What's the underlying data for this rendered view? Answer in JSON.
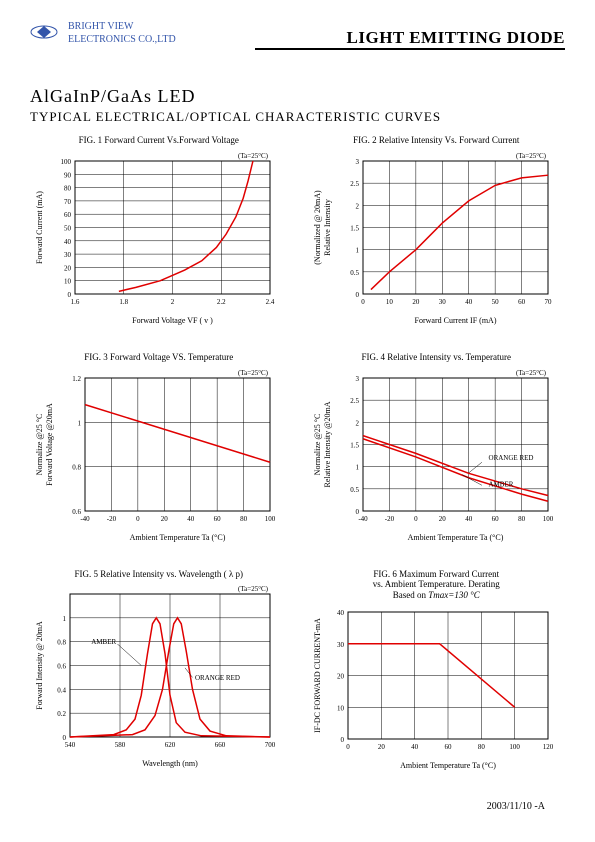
{
  "company": {
    "line1": "BRIGHT VIEW",
    "line2": "ELECTRONICS CO.,LTD"
  },
  "main_title": "LIGHT EMITTING DIODE",
  "subtitle1": "AlGaInP/GaAs LED",
  "subtitle2": "TYPICAL ELECTRICAL/OPTICAL CHARACTERISTIC CURVES",
  "footer_date": "2003/11/10 -A",
  "temp_label": "(Ta=25°C)",
  "fig1": {
    "title": "FIG. 1 Forward Current Vs.Forward Voltage",
    "xlabel": "Forward Voltage VF ( v )",
    "ylabel": "Forward Current (mA)",
    "xlim": [
      1.6,
      2.4
    ],
    "xticks": [
      1.6,
      1.8,
      2.0,
      2.2,
      2.4
    ],
    "ylim": [
      0,
      100
    ],
    "yticks": [
      0,
      10,
      20,
      30,
      40,
      50,
      60,
      70,
      80,
      90,
      100
    ],
    "curve": [
      [
        1.78,
        2
      ],
      [
        1.85,
        5
      ],
      [
        1.95,
        10
      ],
      [
        2.05,
        18
      ],
      [
        2.12,
        25
      ],
      [
        2.18,
        35
      ],
      [
        2.22,
        45
      ],
      [
        2.26,
        58
      ],
      [
        2.29,
        72
      ],
      [
        2.31,
        85
      ],
      [
        2.33,
        100
      ]
    ],
    "curve_color": "#e00000",
    "bg": "#ffffff",
    "grid_color": "#000000"
  },
  "fig2": {
    "title": "FIG. 2 Relative Intensity Vs. Forward Current",
    "xlabel": "Forward Current IF (mA)",
    "ylabel": "Relative Intensity\n(Normalized @ 20mA)",
    "xlim": [
      0,
      70
    ],
    "xticks": [
      0,
      10,
      20,
      30,
      40,
      50,
      60,
      70
    ],
    "ylim": [
      0,
      3.0
    ],
    "yticks": [
      0,
      0.5,
      1.0,
      1.5,
      2.0,
      2.5,
      3.0
    ],
    "curve": [
      [
        3,
        0.1
      ],
      [
        10,
        0.5
      ],
      [
        20,
        1.0
      ],
      [
        30,
        1.6
      ],
      [
        40,
        2.1
      ],
      [
        50,
        2.45
      ],
      [
        60,
        2.62
      ],
      [
        70,
        2.68
      ]
    ],
    "curve_color": "#e00000"
  },
  "fig3": {
    "title": "FIG. 3 Forward Voltage VS. Temperature",
    "xlabel": "Ambient Temperature Ta (°C)",
    "ylabel": "Forward Voltage @20mA\nNormalize @25 °C",
    "xlim": [
      -40,
      100
    ],
    "xticks": [
      -40,
      -20,
      0,
      20,
      40,
      60,
      80,
      100
    ],
    "ylim": [
      0.6,
      1.2
    ],
    "yticks": [
      0.6,
      0.8,
      1.0,
      1.2
    ],
    "curve": [
      [
        -40,
        1.08
      ],
      [
        100,
        0.82
      ]
    ],
    "curve_color": "#e00000"
  },
  "fig4": {
    "title": "FIG. 4 Relative Intensity vs. Temperature",
    "xlabel": "Ambient Temperature Ta (°C)",
    "ylabel": "Relative Intensity @20mA\nNormalize @25 °C",
    "xlim": [
      -40,
      100
    ],
    "xticks": [
      -40,
      -20,
      0,
      20,
      40,
      60,
      80,
      100
    ],
    "ylim": [
      0,
      3.0
    ],
    "yticks": [
      0,
      0.5,
      1.0,
      1.5,
      2.0,
      2.5,
      3.0
    ],
    "curves": [
      {
        "label": "ORANGE RED",
        "data": [
          [
            -40,
            1.7
          ],
          [
            0,
            1.3
          ],
          [
            40,
            0.85
          ],
          [
            80,
            0.5
          ],
          [
            100,
            0.35
          ]
        ]
      },
      {
        "label": "AMBER",
        "data": [
          [
            -40,
            1.63
          ],
          [
            0,
            1.22
          ],
          [
            40,
            0.75
          ],
          [
            80,
            0.38
          ],
          [
            100,
            0.22
          ]
        ]
      }
    ],
    "curve_color": "#e00000"
  },
  "fig5": {
    "title": "FIG. 5 Relative Intensity vs. Wavelength ( λ p)",
    "xlabel": "Wavelength (nm)",
    "ylabel": "Forward Intensity @ 20mA",
    "xlim": [
      540,
      700
    ],
    "xticks": [
      540,
      580,
      620,
      660,
      700
    ],
    "ylim": [
      0,
      1.2
    ],
    "yticks": [
      0,
      0.2,
      0.4,
      0.6,
      0.8,
      1.0
    ],
    "curves": [
      {
        "label": "AMBER",
        "data": [
          [
            540,
            0
          ],
          [
            575,
            0.02
          ],
          [
            585,
            0.06
          ],
          [
            592,
            0.15
          ],
          [
            597,
            0.35
          ],
          [
            602,
            0.7
          ],
          [
            606,
            0.95
          ],
          [
            609,
            1.0
          ],
          [
            612,
            0.95
          ],
          [
            616,
            0.7
          ],
          [
            620,
            0.35
          ],
          [
            625,
            0.12
          ],
          [
            632,
            0.04
          ],
          [
            645,
            0.01
          ],
          [
            700,
            0
          ]
        ]
      },
      {
        "label": "ORANGE RED",
        "data": [
          [
            540,
            0
          ],
          [
            590,
            0.02
          ],
          [
            600,
            0.06
          ],
          [
            608,
            0.18
          ],
          [
            614,
            0.4
          ],
          [
            619,
            0.72
          ],
          [
            623,
            0.95
          ],
          [
            626,
            1.0
          ],
          [
            629,
            0.95
          ],
          [
            633,
            0.72
          ],
          [
            638,
            0.4
          ],
          [
            644,
            0.15
          ],
          [
            652,
            0.05
          ],
          [
            665,
            0.01
          ],
          [
            700,
            0
          ]
        ]
      }
    ],
    "curve_color": "#e00000"
  },
  "fig6": {
    "title": "FIG. 6 Maximum Forward Current\nvs. Ambient Temperature. Derating\nBased on",
    "title_extra": "Tmax=130 °C",
    "xlabel": "Ambient Temperature Ta (°C)",
    "ylabel": "IF-DC FORWARD CURRENT-mA",
    "xlim": [
      0,
      120
    ],
    "xticks": [
      0,
      20,
      40,
      60,
      80,
      100,
      120
    ],
    "ylim": [
      0,
      40
    ],
    "yticks": [
      0,
      10,
      20,
      30,
      40
    ],
    "curve": [
      [
        0,
        30
      ],
      [
        55,
        30
      ],
      [
        100,
        10
      ]
    ],
    "curve_color": "#e00000"
  }
}
